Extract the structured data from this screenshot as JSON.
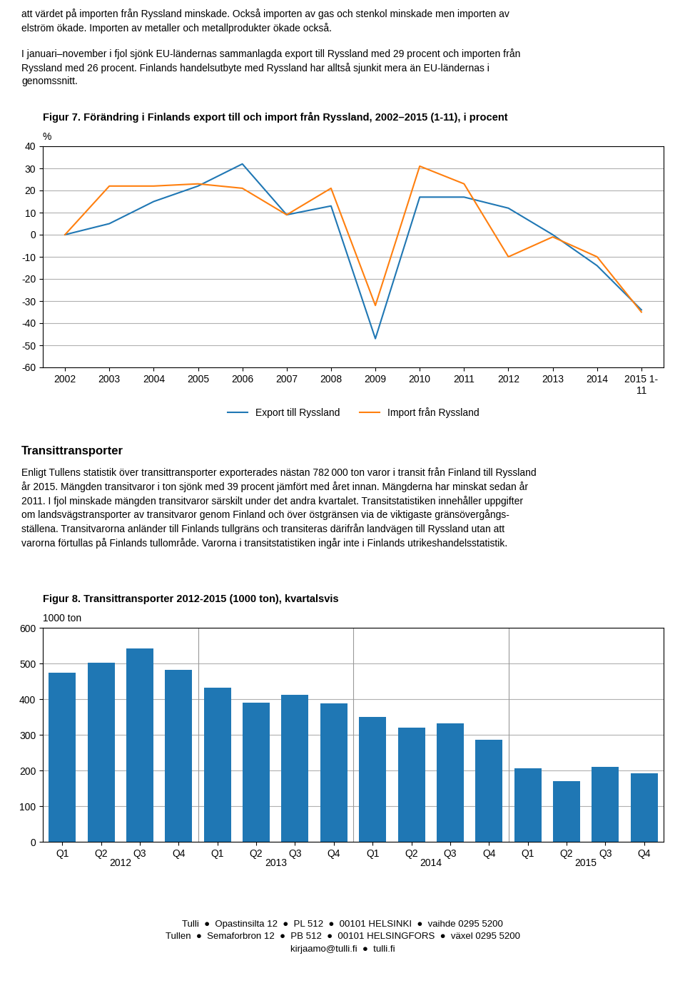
{
  "chart_data": [
    {
      "type": "line",
      "title": "Figur 7. Förändring i Finlands export till och import från Ryssland, 2002–2015 (1-11), i procent",
      "ylabel": "%",
      "categories": [
        "2002",
        "2003",
        "2004",
        "2005",
        "2006",
        "2007",
        "2008",
        "2009",
        "2010",
        "2011",
        "2012",
        "2013",
        "2014",
        "2015 1-\n11"
      ],
      "series": [
        {
          "name": "Export till Ryssland",
          "values": [
            0,
            5,
            15,
            22,
            32,
            9,
            13,
            -47,
            17,
            17,
            12,
            0,
            -14,
            -34
          ]
        },
        {
          "name": "Import från Ryssland",
          "values": [
            0,
            22,
            22,
            23,
            21,
            9,
            21,
            -32,
            31,
            23,
            -10,
            -1,
            -10,
            -35
          ]
        }
      ],
      "ylim": [
        -60,
        40
      ],
      "yticks": [
        -60,
        -50,
        -40,
        -30,
        -20,
        -10,
        0,
        10,
        20,
        30,
        40
      ],
      "grid": true,
      "legend": "lower center"
    },
    {
      "type": "bar",
      "title": "Figur 8. Transittransporter 2012-2015 (1000 ton), kvartalsvis",
      "ylabel": "1000 ton",
      "categories": [
        "Q1",
        "Q2",
        "Q3",
        "Q4",
        "Q1",
        "Q2",
        "Q3",
        "Q4",
        "Q1",
        "Q2",
        "Q3",
        "Q4",
        "Q1",
        "Q2",
        "Q3",
        "Q4"
      ],
      "groups": [
        "2012",
        "2013",
        "2014",
        "2015"
      ],
      "values": [
        475,
        503,
        542,
        483,
        432,
        390,
        412,
        388,
        350,
        320,
        332,
        287,
        207,
        170,
        210,
        193
      ],
      "ylim": [
        0,
        600
      ],
      "yticks": [
        0,
        100,
        200,
        300,
        400,
        500,
        600
      ],
      "grid": true
    }
  ],
  "texts": {
    "top": [
      "att värdet på importen från Ryssland minskade. Också importen av gas och stenkol minskade men importen av\nelström ökade. Importen av metaller och metallprodukter ökade också.",
      "I januari–november i fjol sjönk EU-ländernas sammanlagda export till Ryssland med 29 procent och importen från\nRyssland med 26 procent. Finlands handelsutbyte med Ryssland har alltså sjunkit mera än EU-ländernas i\ngenomssnitt."
    ],
    "heading": "Transittransporter",
    "body": "Enligt Tullens statistik över transittransporter exporterades nästan 782 000 ton varor i transit från Finland till Ryssland\når 2015. Mängden transitvaror i ton sjönk med 39 procent jämfört med året innan. Mängderna har minskat sedan år\n2011. I fjol minskade mängden transitvaror särskilt under det andra kvartalet. Transitstatistiken innehåller uppgifter\nom landsvägstransporter av transitvaror genom Finland och över östgränsen via de viktigaste gränsövergångs-\nställena. Transitvarorna anländer till Finlands tullgräns och transiteras därifrån landvägen till Ryssland utan att\nvarorna förtullas på Finlands tullområde. Varorna i transitstatistiken ingår inte i Finlands utrikeshandelsstatistik.",
    "footer": [
      "Tulli  ●  Opastinsilta 12  ●  PL 512  ●  00101 HELSINKI  ●  vaihde 0295 5200",
      "Tullen  ●  Semaforbron 12  ●  PB 512  ●  00101 HELSINGFORS  ●  växel 0295 5200",
      "kirjaamo@tulli.fi  ●  tulli.fi"
    ]
  }
}
